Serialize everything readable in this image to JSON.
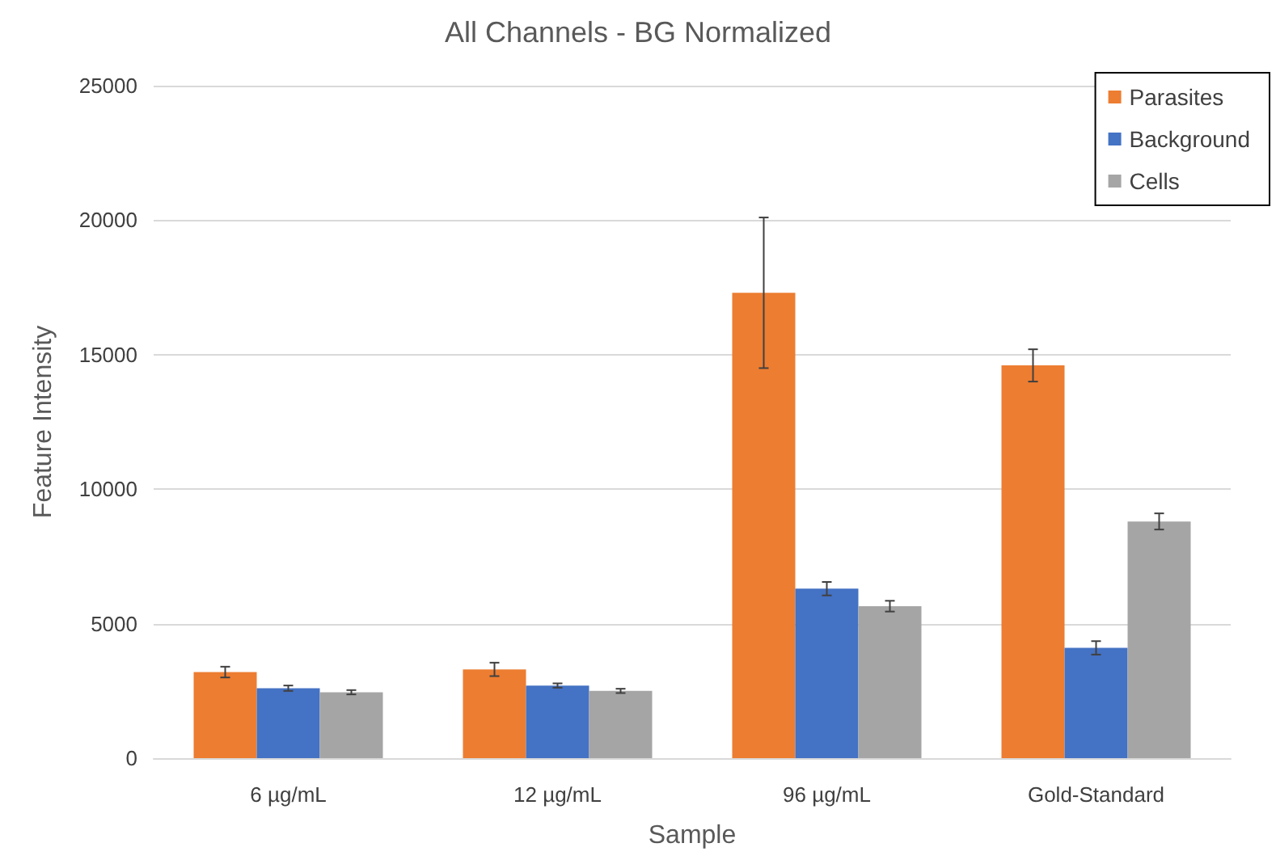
{
  "chart_data": {
    "type": "bar",
    "title": "All Channels - BG Normalized",
    "xlabel": "Sample",
    "ylabel": "Feature Intensity",
    "categories": [
      "6 µg/mL",
      "12 µg/mL",
      "96 µg/mL",
      "Gold-Standard"
    ],
    "series": [
      {
        "name": "Parasites",
        "color": "#ed7d31",
        "values": [
          3200,
          3300,
          17300,
          14600
        ],
        "errors": [
          200,
          250,
          2800,
          600
        ]
      },
      {
        "name": "Background",
        "color": "#4472c4",
        "values": [
          2600,
          2700,
          6300,
          4100
        ],
        "errors": [
          100,
          80,
          250,
          250
        ]
      },
      {
        "name": "Cells",
        "color": "#a5a5a5",
        "values": [
          2450,
          2500,
          5650,
          8800
        ],
        "errors": [
          80,
          80,
          200,
          300
        ]
      }
    ],
    "ylim": [
      0,
      25000
    ],
    "yticks": [
      0,
      5000,
      10000,
      15000,
      20000,
      25000
    ],
    "grid": "y",
    "legend": "top right"
  }
}
